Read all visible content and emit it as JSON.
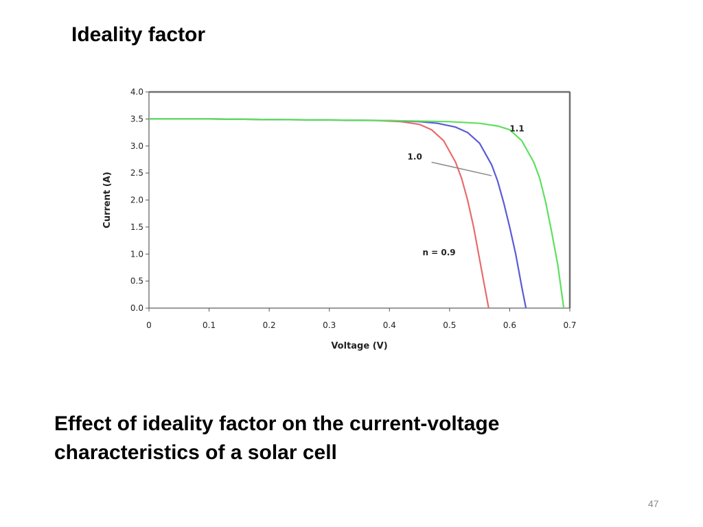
{
  "slide": {
    "title": "Ideality factor",
    "caption_lines": [
      "Effect of ideality factor on the current-voltage",
      "characteristics of a solar cell"
    ],
    "page_number": "47"
  },
  "chart_data": {
    "type": "line",
    "title": "",
    "xlabel": "Voltage (V)",
    "ylabel": "Current (A)",
    "xlim": [
      0,
      0.7
    ],
    "ylim": [
      0,
      4.0
    ],
    "x_ticks": [
      "0",
      "0.1",
      "0.2",
      "0.3",
      "0.4",
      "0.5",
      "0.6",
      "0.7"
    ],
    "y_ticks": [
      "0.0",
      "0.5",
      "1.0",
      "1.5",
      "2.0",
      "2.5",
      "3.0",
      "3.5",
      "4.0"
    ],
    "grid": false,
    "series": [
      {
        "name": "n = 0.9",
        "color": "#e86a6a",
        "x": [
          0,
          0.1,
          0.2,
          0.3,
          0.38,
          0.42,
          0.45,
          0.47,
          0.49,
          0.51,
          0.52,
          0.53,
          0.54,
          0.55,
          0.56,
          0.565
        ],
        "y": [
          3.5,
          3.5,
          3.49,
          3.48,
          3.47,
          3.45,
          3.4,
          3.3,
          3.1,
          2.7,
          2.4,
          2.0,
          1.5,
          0.9,
          0.3,
          0.0
        ]
      },
      {
        "name": "1.0",
        "color": "#5a5ad8",
        "x": [
          0,
          0.1,
          0.2,
          0.3,
          0.4,
          0.45,
          0.48,
          0.51,
          0.53,
          0.55,
          0.57,
          0.58,
          0.59,
          0.6,
          0.61,
          0.62,
          0.627
        ],
        "y": [
          3.5,
          3.5,
          3.49,
          3.48,
          3.47,
          3.45,
          3.42,
          3.35,
          3.25,
          3.05,
          2.65,
          2.35,
          1.95,
          1.5,
          1.0,
          0.4,
          0.0
        ]
      },
      {
        "name": "1.1",
        "color": "#5ce05c",
        "x": [
          0,
          0.1,
          0.2,
          0.3,
          0.4,
          0.5,
          0.55,
          0.58,
          0.6,
          0.62,
          0.64,
          0.65,
          0.66,
          0.67,
          0.68,
          0.69
        ],
        "y": [
          3.5,
          3.5,
          3.49,
          3.48,
          3.47,
          3.45,
          3.42,
          3.37,
          3.3,
          3.1,
          2.7,
          2.4,
          1.95,
          1.4,
          0.8,
          0.0
        ]
      }
    ],
    "annotations": [
      {
        "text": "1.1",
        "x": 0.6,
        "y": 3.27
      },
      {
        "text": "1.0",
        "x": 0.43,
        "y": 2.75
      },
      {
        "text": "n = 0.9",
        "x": 0.455,
        "y": 0.98
      }
    ],
    "annotation_arrow": {
      "from": [
        0.47,
        2.7
      ],
      "to": [
        0.57,
        2.45
      ],
      "color": "#8a8a8a"
    }
  }
}
